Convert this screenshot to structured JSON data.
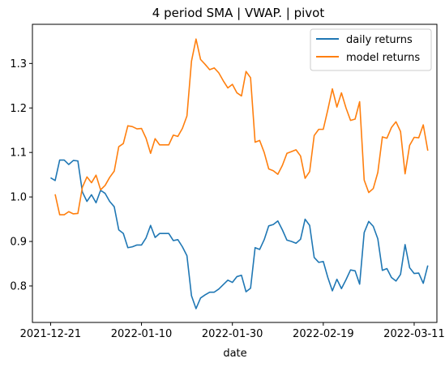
{
  "chart_data": {
    "type": "line",
    "title": "4 period SMA | VWAP. | pivot",
    "xlabel": "date",
    "ylabel": "",
    "x_ticks": [
      "2021-12-21",
      "2022-01-10",
      "2022-01-30",
      "2022-02-19",
      "2022-03-11"
    ],
    "y_ticks": [
      "0.8",
      "0.9",
      "1.0",
      "1.1",
      "1.2",
      "1.3"
    ],
    "ylim": [
      0.718,
      1.388
    ],
    "xlim": [
      "2021-12-17",
      "2022-03-16"
    ],
    "grid": false,
    "legend_position": "top-right",
    "series": [
      {
        "name": "daily returns",
        "color": "#1f77b4",
        "x": [
          "2021-12-21",
          "2021-12-22",
          "2021-12-23",
          "2021-12-24",
          "2021-12-25",
          "2021-12-26",
          "2021-12-27",
          "2021-12-28",
          "2021-12-29",
          "2021-12-30",
          "2021-12-31",
          "2022-01-01",
          "2022-01-02",
          "2022-01-03",
          "2022-01-04",
          "2022-01-05",
          "2022-01-06",
          "2022-01-07",
          "2022-01-08",
          "2022-01-09",
          "2022-01-10",
          "2022-01-11",
          "2022-01-12",
          "2022-01-13",
          "2022-01-14",
          "2022-01-15",
          "2022-01-16",
          "2022-01-17",
          "2022-01-18",
          "2022-01-19",
          "2022-01-20",
          "2022-01-21",
          "2022-01-22",
          "2022-01-23",
          "2022-01-24",
          "2022-01-25",
          "2022-01-26",
          "2022-01-27",
          "2022-01-28",
          "2022-01-29",
          "2022-01-30",
          "2022-01-31",
          "2022-02-01",
          "2022-02-02",
          "2022-02-03",
          "2022-02-04",
          "2022-02-05",
          "2022-02-06",
          "2022-02-07",
          "2022-02-08",
          "2022-02-09",
          "2022-02-10",
          "2022-02-11",
          "2022-02-12",
          "2022-02-13",
          "2022-02-14",
          "2022-02-15",
          "2022-02-16",
          "2022-02-17",
          "2022-02-18",
          "2022-02-19",
          "2022-02-20",
          "2022-02-21",
          "2022-02-22",
          "2022-02-23",
          "2022-02-24",
          "2022-02-25",
          "2022-02-26",
          "2022-02-27",
          "2022-02-28",
          "2022-03-01",
          "2022-03-02",
          "2022-03-03",
          "2022-03-04",
          "2022-03-05",
          "2022-03-06",
          "2022-03-07",
          "2022-03-08",
          "2022-03-09",
          "2022-03-10",
          "2022-03-11",
          "2022-03-12",
          "2022-03-13",
          "2022-03-14"
        ],
        "y": [
          1.043,
          1.037,
          1.083,
          1.083,
          1.073,
          1.082,
          1.081,
          1.011,
          0.99,
          1.005,
          0.987,
          1.015,
          1.008,
          0.99,
          0.978,
          0.926,
          0.918,
          0.886,
          0.888,
          0.892,
          0.892,
          0.908,
          0.936,
          0.909,
          0.918,
          0.918,
          0.918,
          0.902,
          0.904,
          0.888,
          0.868,
          0.778,
          0.749,
          0.773,
          0.78,
          0.786,
          0.786,
          0.793,
          0.803,
          0.813,
          0.808,
          0.821,
          0.824,
          0.787,
          0.795,
          0.886,
          0.882,
          0.904,
          0.935,
          0.938,
          0.946,
          0.926,
          0.903,
          0.9,
          0.896,
          0.905,
          0.95,
          0.936,
          0.864,
          0.853,
          0.855,
          0.819,
          0.789,
          0.815,
          0.794,
          0.814,
          0.836,
          0.834,
          0.804,
          0.92,
          0.945,
          0.934,
          0.906,
          0.835,
          0.839,
          0.819,
          0.811,
          0.826,
          0.893,
          0.841,
          0.828,
          0.829,
          0.806,
          0.846
        ]
      },
      {
        "name": "model returns",
        "color": "#ff7f0e",
        "x": [
          "2021-12-22",
          "2021-12-23",
          "2021-12-24",
          "2021-12-25",
          "2021-12-26",
          "2021-12-27",
          "2021-12-28",
          "2021-12-29",
          "2021-12-30",
          "2021-12-31",
          "2022-01-01",
          "2022-01-02",
          "2022-01-03",
          "2022-01-04",
          "2022-01-05",
          "2022-01-06",
          "2022-01-07",
          "2022-01-08",
          "2022-01-09",
          "2022-01-10",
          "2022-01-11",
          "2022-01-12",
          "2022-01-13",
          "2022-01-14",
          "2022-01-15",
          "2022-01-16",
          "2022-01-17",
          "2022-01-18",
          "2022-01-19",
          "2022-01-20",
          "2022-01-21",
          "2022-01-22",
          "2022-01-23",
          "2022-01-24",
          "2022-01-25",
          "2022-01-26",
          "2022-01-27",
          "2022-01-28",
          "2022-01-29",
          "2022-01-30",
          "2022-01-31",
          "2022-02-01",
          "2022-02-02",
          "2022-02-03",
          "2022-02-04",
          "2022-02-05",
          "2022-02-06",
          "2022-02-07",
          "2022-02-08",
          "2022-02-09",
          "2022-02-10",
          "2022-02-11",
          "2022-02-12",
          "2022-02-13",
          "2022-02-14",
          "2022-02-15",
          "2022-02-16",
          "2022-02-17",
          "2022-02-18",
          "2022-02-19",
          "2022-02-20",
          "2022-02-21",
          "2022-02-22",
          "2022-02-23",
          "2022-02-24",
          "2022-02-25",
          "2022-02-26",
          "2022-02-27",
          "2022-02-28",
          "2022-03-01",
          "2022-03-02",
          "2022-03-03",
          "2022-03-04",
          "2022-03-05",
          "2022-03-06",
          "2022-03-07",
          "2022-03-08",
          "2022-03-09",
          "2022-03-10",
          "2022-03-11",
          "2022-03-12",
          "2022-03-13",
          "2022-03-14"
        ],
        "y": [
          1.006,
          0.96,
          0.96,
          0.967,
          0.962,
          0.963,
          1.022,
          1.045,
          1.032,
          1.049,
          1.016,
          1.026,
          1.044,
          1.058,
          1.113,
          1.12,
          1.16,
          1.158,
          1.153,
          1.154,
          1.132,
          1.098,
          1.131,
          1.117,
          1.117,
          1.117,
          1.139,
          1.136,
          1.154,
          1.182,
          1.305,
          1.355,
          1.309,
          1.298,
          1.286,
          1.29,
          1.279,
          1.261,
          1.245,
          1.253,
          1.234,
          1.227,
          1.282,
          1.268,
          1.123,
          1.127,
          1.1,
          1.063,
          1.059,
          1.051,
          1.071,
          1.098,
          1.102,
          1.106,
          1.092,
          1.042,
          1.057,
          1.138,
          1.152,
          1.152,
          1.196,
          1.243,
          1.202,
          1.234,
          1.2,
          1.172,
          1.175,
          1.214,
          1.038,
          1.01,
          1.019,
          1.055,
          1.135,
          1.132,
          1.156,
          1.169,
          1.147,
          1.052,
          1.116,
          1.134,
          1.133,
          1.162,
          1.104
        ]
      }
    ]
  }
}
